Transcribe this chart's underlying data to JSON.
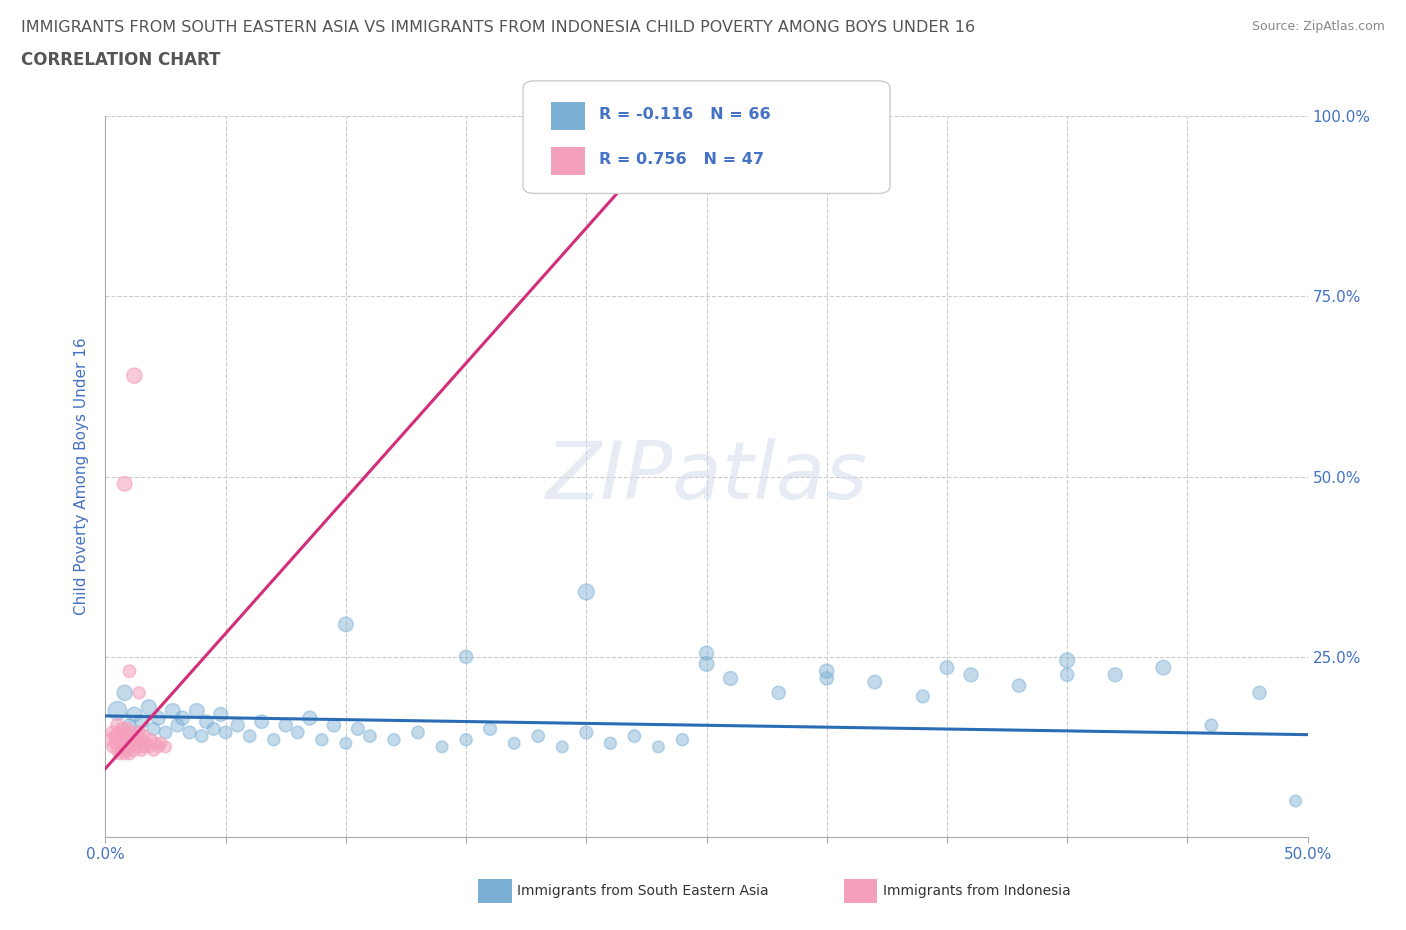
{
  "title_line1": "IMMIGRANTS FROM SOUTH EASTERN ASIA VS IMMIGRANTS FROM INDONESIA CHILD POVERTY AMONG BOYS UNDER 16",
  "title_line2": "CORRELATION CHART",
  "source_text": "Source: ZipAtlas.com",
  "ylabel": "Child Poverty Among Boys Under 16",
  "xlim": [
    0.0,
    0.5
  ],
  "ylim": [
    0.0,
    1.0
  ],
  "blue_color": "#7bafd4",
  "pink_color": "#f4a0bc",
  "blue_line_color": "#2a6db5",
  "pink_line_color": "#d42d7a",
  "axis_tick_color": "#4472c4",
  "title_color": "#555555",
  "grid_color": "#cccccc",
  "label1": "Immigrants from South Eastern Asia",
  "label2": "Immigrants from Indonesia",
  "watermark": "ZIPatlas",
  "blue_scatter_x": [
    0.005,
    0.008,
    0.01,
    0.012,
    0.015,
    0.018,
    0.02,
    0.022,
    0.025,
    0.028,
    0.03,
    0.032,
    0.035,
    0.038,
    0.04,
    0.042,
    0.045,
    0.048,
    0.05,
    0.055,
    0.06,
    0.065,
    0.07,
    0.075,
    0.08,
    0.085,
    0.09,
    0.095,
    0.1,
    0.105,
    0.11,
    0.12,
    0.13,
    0.14,
    0.15,
    0.16,
    0.17,
    0.18,
    0.19,
    0.2,
    0.21,
    0.22,
    0.23,
    0.24,
    0.25,
    0.26,
    0.28,
    0.3,
    0.32,
    0.34,
    0.36,
    0.38,
    0.4,
    0.42,
    0.44,
    0.46,
    0.48,
    0.495,
    0.1,
    0.15,
    0.2,
    0.25,
    0.3,
    0.35,
    0.4
  ],
  "blue_scatter_y": [
    0.175,
    0.2,
    0.155,
    0.17,
    0.16,
    0.18,
    0.15,
    0.165,
    0.145,
    0.175,
    0.155,
    0.165,
    0.145,
    0.175,
    0.14,
    0.16,
    0.15,
    0.17,
    0.145,
    0.155,
    0.14,
    0.16,
    0.135,
    0.155,
    0.145,
    0.165,
    0.135,
    0.155,
    0.13,
    0.15,
    0.14,
    0.135,
    0.145,
    0.125,
    0.135,
    0.15,
    0.13,
    0.14,
    0.125,
    0.145,
    0.13,
    0.14,
    0.125,
    0.135,
    0.24,
    0.22,
    0.2,
    0.23,
    0.215,
    0.195,
    0.225,
    0.21,
    0.245,
    0.225,
    0.235,
    0.155,
    0.2,
    0.05,
    0.295,
    0.25,
    0.34,
    0.255,
    0.22,
    0.235,
    0.225
  ],
  "blue_scatter_s": [
    180,
    120,
    90,
    110,
    95,
    115,
    85,
    100,
    80,
    110,
    90,
    100,
    85,
    110,
    80,
    95,
    85,
    100,
    80,
    90,
    80,
    95,
    75,
    90,
    80,
    100,
    75,
    90,
    70,
    85,
    80,
    75,
    80,
    70,
    75,
    85,
    70,
    80,
    70,
    85,
    75,
    80,
    70,
    75,
    110,
    100,
    90,
    105,
    95,
    85,
    100,
    90,
    115,
    100,
    110,
    80,
    90,
    70,
    110,
    90,
    130,
    100,
    90,
    95,
    90
  ],
  "pink_scatter_x": [
    0.002,
    0.003,
    0.003,
    0.004,
    0.004,
    0.005,
    0.005,
    0.005,
    0.006,
    0.006,
    0.006,
    0.007,
    0.007,
    0.007,
    0.008,
    0.008,
    0.008,
    0.009,
    0.009,
    0.009,
    0.01,
    0.01,
    0.01,
    0.011,
    0.011,
    0.012,
    0.012,
    0.013,
    0.013,
    0.014,
    0.014,
    0.015,
    0.015,
    0.016,
    0.016,
    0.017,
    0.018,
    0.019,
    0.02,
    0.021,
    0.022,
    0.023,
    0.025,
    0.008,
    0.01,
    0.012,
    0.014
  ],
  "pink_scatter_y": [
    0.135,
    0.145,
    0.125,
    0.14,
    0.13,
    0.12,
    0.14,
    0.155,
    0.13,
    0.145,
    0.115,
    0.135,
    0.15,
    0.12,
    0.13,
    0.145,
    0.115,
    0.135,
    0.15,
    0.12,
    0.125,
    0.14,
    0.115,
    0.13,
    0.145,
    0.12,
    0.135,
    0.125,
    0.14,
    0.13,
    0.145,
    0.12,
    0.135,
    0.125,
    0.14,
    0.13,
    0.125,
    0.135,
    0.12,
    0.13,
    0.125,
    0.13,
    0.125,
    0.49,
    0.23,
    0.64,
    0.2
  ],
  "pink_scatter_s": [
    80,
    85,
    70,
    80,
    75,
    70,
    85,
    90,
    75,
    85,
    65,
    80,
    90,
    70,
    75,
    85,
    65,
    80,
    90,
    70,
    75,
    85,
    65,
    75,
    85,
    70,
    80,
    75,
    85,
    75,
    85,
    70,
    80,
    75,
    85,
    75,
    70,
    75,
    65,
    75,
    70,
    75,
    70,
    110,
    80,
    120,
    75
  ],
  "blue_trend_x": [
    0.0,
    0.5
  ],
  "blue_trend_y": [
    0.168,
    0.142
  ],
  "pink_trend_x": [
    0.0,
    0.22
  ],
  "pink_trend_y": [
    0.095,
    0.92
  ]
}
